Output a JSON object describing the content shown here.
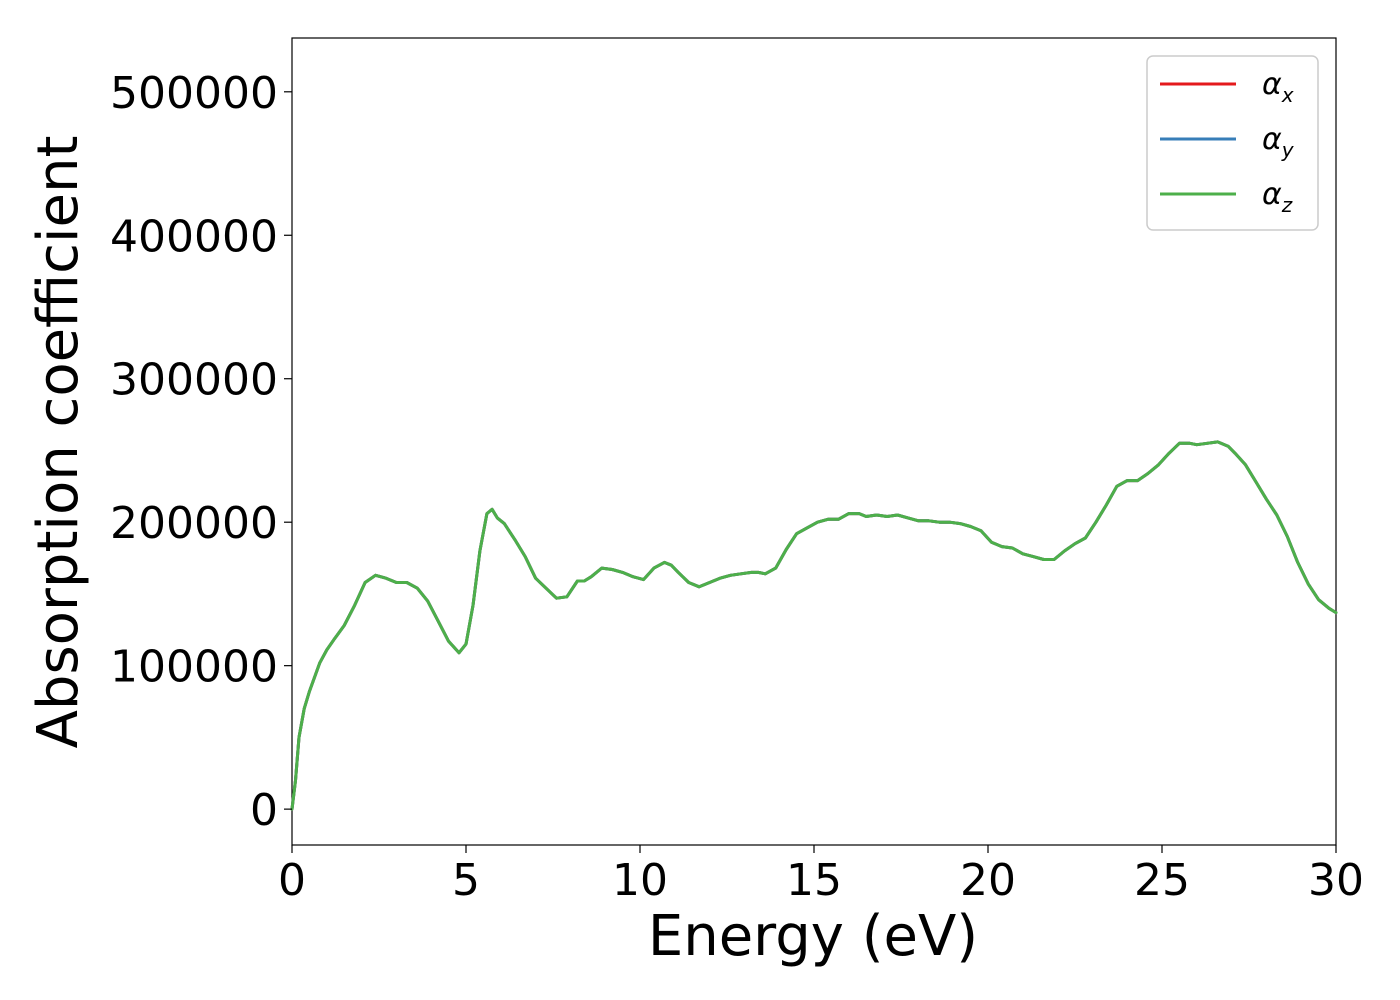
{
  "chart_data": {
    "type": "line",
    "xlabel": "Energy (eV)",
    "ylabel": "Absorption coefficient",
    "xlim": [
      0,
      30
    ],
    "ylim": [
      -25000,
      537500
    ],
    "x_ticks": [
      "0",
      "5",
      "10",
      "15",
      "20",
      "25",
      "30"
    ],
    "x_tick_values": [
      0,
      5,
      10,
      15,
      20,
      25,
      30
    ],
    "y_ticks": [
      "0",
      "100000",
      "200000",
      "300000",
      "400000",
      "500000"
    ],
    "y_tick_values": [
      0,
      100000,
      200000,
      300000,
      400000,
      500000
    ],
    "grid": false,
    "legend_position": "top-right",
    "legend": [
      {
        "symbol": "α",
        "sub": "x",
        "color": "#e41a1c"
      },
      {
        "symbol": "α",
        "sub": "y",
        "color": "#377eb8"
      },
      {
        "symbol": "α",
        "sub": "z",
        "color": "#4daf4a"
      }
    ],
    "series": [
      {
        "name": "α_x",
        "color": "#e41a1c"
      },
      {
        "name": "α_y",
        "color": "#377eb8"
      },
      {
        "name": "α_z",
        "color": "#4daf4a"
      }
    ],
    "x": [
      0,
      0.1,
      0.2,
      0.35,
      0.5,
      0.8,
      1.0,
      1.2,
      1.5,
      1.8,
      2.1,
      2.4,
      2.7,
      3.0,
      3.3,
      3.6,
      3.9,
      4.2,
      4.5,
      4.8,
      5.0,
      5.2,
      5.4,
      5.6,
      5.75,
      5.9,
      6.1,
      6.4,
      6.7,
      7.0,
      7.3,
      7.6,
      7.9,
      8.2,
      8.4,
      8.6,
      8.9,
      9.2,
      9.5,
      9.8,
      10.1,
      10.4,
      10.7,
      10.9,
      11.1,
      11.4,
      11.7,
      12.0,
      12.3,
      12.6,
      12.9,
      13.2,
      13.4,
      13.6,
      13.9,
      14.2,
      14.5,
      14.8,
      15.1,
      15.4,
      15.7,
      16.0,
      16.3,
      16.5,
      16.8,
      17.1,
      17.4,
      17.7,
      18.0,
      18.3,
      18.6,
      18.9,
      19.2,
      19.5,
      19.8,
      20.1,
      20.4,
      20.7,
      21.0,
      21.3,
      21.6,
      21.9,
      22.2,
      22.5,
      22.8,
      23.1,
      23.4,
      23.7,
      24.0,
      24.3,
      24.6,
      24.9,
      25.2,
      25.5,
      25.8,
      26.0,
      26.3,
      26.6,
      26.9,
      27.1,
      27.4,
      27.7,
      28.0,
      28.3,
      28.6,
      28.9,
      29.2,
      29.5,
      29.8,
      30.0
    ],
    "y": [
      0,
      20000,
      50000,
      70000,
      82000,
      102000,
      111000,
      118000,
      128000,
      142000,
      158000,
      163000,
      161000,
      158000,
      158000,
      154000,
      145000,
      131000,
      117000,
      109000,
      115000,
      142000,
      180000,
      206000,
      209000,
      203000,
      199000,
      188000,
      176000,
      161000,
      154000,
      147000,
      148000,
      159000,
      159000,
      162000,
      168000,
      167000,
      165000,
      162000,
      160000,
      168000,
      172000,
      170000,
      165000,
      158000,
      155000,
      158000,
      161000,
      163000,
      164000,
      165000,
      165000,
      164000,
      168000,
      181000,
      192000,
      196000,
      200000,
      202000,
      202000,
      206000,
      206000,
      204000,
      205000,
      204000,
      205000,
      203000,
      201000,
      201000,
      200000,
      200000,
      199000,
      197000,
      194000,
      186000,
      183000,
      182000,
      178000,
      176000,
      174000,
      174000,
      180000,
      185000,
      189000,
      200000,
      212000,
      225000,
      229000,
      229000,
      234000,
      240000,
      248000,
      255000,
      255000,
      254000,
      255000,
      256000,
      253000,
      248000,
      240000,
      228000,
      216000,
      205000,
      190000,
      172000,
      157000,
      146000,
      140000,
      137000
    ]
  }
}
